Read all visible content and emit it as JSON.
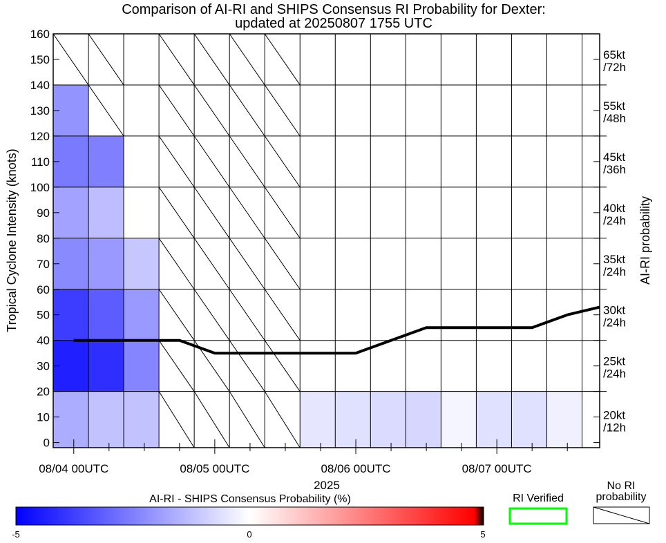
{
  "chart_data": {
    "type": "heatmap",
    "title": "Comparison of AI-RI and SHIPS Consensus RI Probability for Dexter:",
    "subtitle": "updated at 20250807 1755 UTC",
    "ylabel": "Tropical Cyclone Intensity (knots)",
    "right_label": "AI-RI probability",
    "xlabel": "2025",
    "x_tick_labels": [
      "08/04 00UTC",
      "08/05 00UTC",
      "08/06 00UTC",
      "08/07 00UTC"
    ],
    "x_tick_hours": [
      0,
      24,
      48,
      72
    ],
    "x_range_hours": [
      -3.5,
      89.5
    ],
    "ylim": [
      -2,
      160
    ],
    "yticks": [
      0,
      10,
      20,
      30,
      40,
      50,
      60,
      70,
      80,
      90,
      100,
      110,
      120,
      130,
      140,
      150,
      160
    ],
    "row_edges": [
      -2,
      20,
      40,
      60,
      80,
      100,
      120,
      140,
      160
    ],
    "row_labels": [
      [
        "20kt",
        "/12h"
      ],
      [
        "25kt",
        "/24h"
      ],
      [
        "30kt",
        "/24h"
      ],
      [
        "35kt",
        "/24h"
      ],
      [
        "40kt",
        "/24h"
      ],
      [
        "45kt",
        "/36h"
      ],
      [
        "55kt",
        "/48h"
      ],
      [
        "65kt",
        "/72h"
      ]
    ],
    "column_start_hours": [
      -3.5,
      2.5,
      8.5,
      14.5,
      20.5,
      26.5,
      32.5,
      38.5,
      44.5,
      50.5,
      56.5,
      62.5,
      68.5,
      74.5,
      80.5,
      86.5
    ],
    "cells": [
      {
        "col": 0,
        "row": 0,
        "value": -1.6
      },
      {
        "col": 0,
        "row": 1,
        "value": -4.4
      },
      {
        "col": 0,
        "row": 2,
        "value": -3.8
      },
      {
        "col": 0,
        "row": 3,
        "value": -2.3
      },
      {
        "col": 0,
        "row": 4,
        "value": -1.8
      },
      {
        "col": 0,
        "row": 5,
        "value": -2.6
      },
      {
        "col": 0,
        "row": 6,
        "value": -2.1
      },
      {
        "col": 1,
        "row": 0,
        "value": -1.2
      },
      {
        "col": 1,
        "row": 1,
        "value": -4.1
      },
      {
        "col": 1,
        "row": 2,
        "value": -3.2
      },
      {
        "col": 1,
        "row": 3,
        "value": -2.0
      },
      {
        "col": 1,
        "row": 4,
        "value": -1.3
      },
      {
        "col": 1,
        "row": 5,
        "value": -2.5
      },
      {
        "col": 2,
        "row": 0,
        "value": -1.2
      },
      {
        "col": 2,
        "row": 1,
        "value": -2.4
      },
      {
        "col": 2,
        "row": 2,
        "value": -2.0
      },
      {
        "col": 2,
        "row": 3,
        "value": -1.1
      },
      {
        "col": 7,
        "row": 0,
        "value": -0.5
      },
      {
        "col": 8,
        "row": 0,
        "value": -0.6
      },
      {
        "col": 9,
        "row": 0,
        "value": -0.7
      },
      {
        "col": 10,
        "row": 0,
        "value": -0.8
      },
      {
        "col": 11,
        "row": 0,
        "value": -0.2
      },
      {
        "col": 12,
        "row": 0,
        "value": -0.6
      },
      {
        "col": 13,
        "row": 0,
        "value": -0.6
      },
      {
        "col": 14,
        "row": 0,
        "value": -0.3
      }
    ],
    "no_ri_probability_cells": [
      {
        "col": 3,
        "rows": [
          0,
          1,
          2,
          3,
          4,
          5,
          6,
          7
        ]
      },
      {
        "col": 4,
        "rows": [
          0,
          1,
          2,
          3,
          4,
          5,
          6,
          7
        ]
      },
      {
        "col": 5,
        "rows": [
          0,
          1,
          2,
          3,
          4,
          5,
          6,
          7
        ]
      },
      {
        "col": 6,
        "rows": [
          0,
          1,
          2,
          3,
          4,
          5,
          6,
          7
        ]
      },
      {
        "col": 1,
        "rows": [
          6,
          7
        ]
      },
      {
        "col": 0,
        "rows": [
          7
        ]
      }
    ],
    "intensity_line": {
      "x_hours": [
        0,
        18,
        24,
        48,
        60,
        72,
        78,
        84,
        89.5
      ],
      "y": [
        40,
        40,
        35,
        35,
        45,
        45,
        45,
        50,
        53
      ]
    },
    "colorbar": {
      "title": "AI-RI - SHIPS Consensus Probability (%)",
      "min": -5,
      "mid": 0,
      "max": 5,
      "tick_labels": [
        "-5",
        "0",
        "5"
      ],
      "colors": [
        "#0000ff",
        "#ffffff",
        "#ff0000"
      ],
      "end_color": "#000000"
    },
    "legend": {
      "verified_label": "RI Verified",
      "verified_color": "#00ff00",
      "no_ri_label": [
        "No RI",
        "probability"
      ]
    },
    "grid": true
  }
}
